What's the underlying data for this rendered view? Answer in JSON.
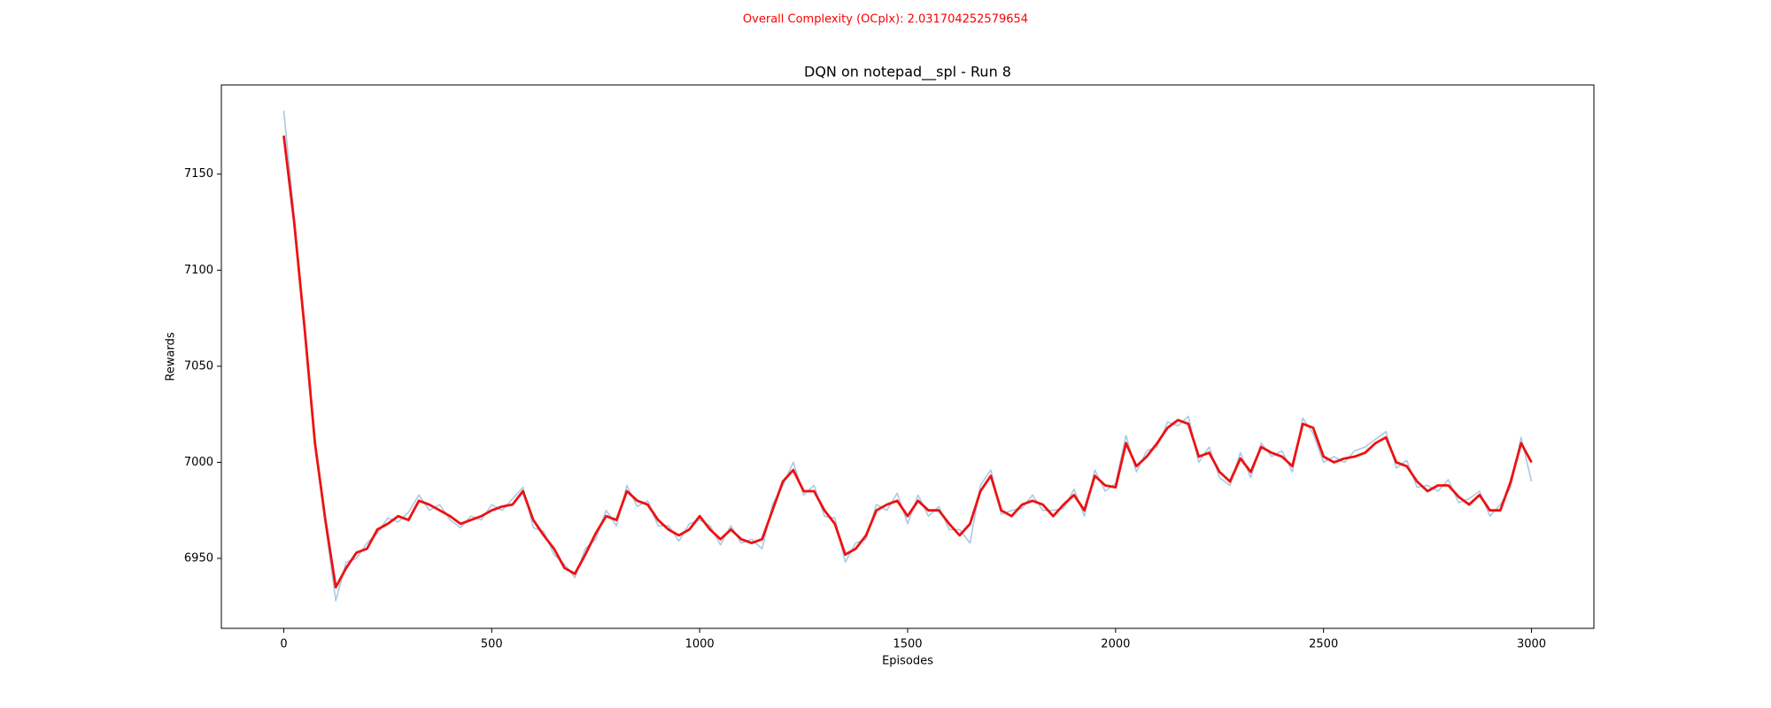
{
  "chart_data": {
    "type": "line",
    "suptitle": "Overall Complexity (OCplx): 2.031704252579654",
    "title": "DQN on notepad__spl - Run 8",
    "xlabel": "Episodes",
    "ylabel": "Rewards",
    "x": [
      0,
      25,
      50,
      75,
      100,
      125,
      150,
      175,
      200,
      225,
      250,
      275,
      300,
      325,
      350,
      375,
      400,
      425,
      450,
      475,
      500,
      525,
      550,
      575,
      600,
      625,
      650,
      675,
      700,
      725,
      750,
      775,
      800,
      825,
      850,
      875,
      900,
      925,
      950,
      975,
      1000,
      1025,
      1050,
      1075,
      1100,
      1125,
      1150,
      1175,
      1200,
      1225,
      1250,
      1275,
      1300,
      1325,
      1350,
      1375,
      1400,
      1425,
      1450,
      1475,
      1500,
      1525,
      1550,
      1575,
      1600,
      1625,
      1650,
      1675,
      1700,
      1725,
      1750,
      1775,
      1800,
      1825,
      1850,
      1875,
      1900,
      1925,
      1950,
      1975,
      2000,
      2025,
      2050,
      2075,
      2100,
      2125,
      2150,
      2175,
      2200,
      2225,
      2250,
      2275,
      2300,
      2325,
      2350,
      2375,
      2400,
      2425,
      2450,
      2475,
      2500,
      2525,
      2550,
      2575,
      2600,
      2625,
      2650,
      2675,
      2700,
      2725,
      2750,
      2775,
      2800,
      2825,
      2850,
      2875,
      2900,
      2925,
      2950,
      2975,
      3000
    ],
    "series": [
      {
        "color": "#a9c9e3",
        "values": [
          7183,
          7128,
          7068,
          7012,
          6968,
          6928,
          6948,
          6950,
          6958,
          6963,
          6971,
          6969,
          6974,
          6983,
          6975,
          6978,
          6970,
          6966,
          6972,
          6970,
          6978,
          6975,
          6981,
          6987,
          6966,
          6964,
          6952,
          6947,
          6940,
          6955,
          6960,
          6975,
          6967,
          6988,
          6977,
          6980,
          6967,
          6967,
          6959,
          6968,
          6970,
          6967,
          6957,
          6967,
          6958,
          6960,
          6955,
          6978,
          6988,
          7000,
          6983,
          6988,
          6972,
          6971,
          6948,
          6958,
          6960,
          6978,
          6975,
          6984,
          6968,
          6983,
          6972,
          6977,
          6965,
          6965,
          6958,
          6988,
          6996,
          6973,
          6975,
          6976,
          6983,
          6975,
          6975,
          6976,
          6986,
          6972,
          6996,
          6985,
          6989,
          7014,
          6995,
          7006,
          7008,
          7021,
          7019,
          7024,
          7000,
          7008,
          6992,
          6988,
          7005,
          6992,
          7010,
          7003,
          7006,
          6995,
          7023,
          7015,
          7000,
          7003,
          7000,
          7006,
          7008,
          7012,
          7016,
          6997,
          7001,
          6987,
          6988,
          6985,
          6991,
          6979,
          6981,
          6985,
          6972,
          6978,
          6987,
          7013,
          6990
        ]
      },
      {
        "color": "#ee1111",
        "values": [
          7170,
          7125,
          7070,
          7010,
          6970,
          6935,
          6945,
          6953,
          6955,
          6965,
          6968,
          6972,
          6970,
          6980,
          6978,
          6975,
          6972,
          6968,
          6970,
          6972,
          6975,
          6977,
          6978,
          6985,
          6970,
          6962,
          6955,
          6945,
          6942,
          6952,
          6963,
          6972,
          6970,
          6985,
          6980,
          6978,
          6970,
          6965,
          6962,
          6965,
          6972,
          6965,
          6960,
          6965,
          6960,
          6958,
          6960,
          6975,
          6990,
          6996,
          6985,
          6985,
          6975,
          6968,
          6952,
          6955,
          6962,
          6975,
          6978,
          6980,
          6972,
          6980,
          6975,
          6975,
          6968,
          6962,
          6968,
          6985,
          6993,
          6975,
          6972,
          6978,
          6980,
          6978,
          6972,
          6978,
          6983,
          6975,
          6993,
          6988,
          6987,
          7010,
          6998,
          7003,
          7010,
          7018,
          7022,
          7020,
          7003,
          7005,
          6995,
          6990,
          7002,
          6995,
          7008,
          7005,
          7003,
          6998,
          7020,
          7018,
          7003,
          7000,
          7002,
          7003,
          7005,
          7010,
          7013,
          7000,
          6998,
          6990,
          6985,
          6988,
          6988,
          6982,
          6978,
          6983,
          6975,
          6975,
          6990,
          7010,
          7000
        ]
      }
    ],
    "xlim": [
      -150,
      3150
    ],
    "ylim": [
      6913.6,
      7196.4
    ],
    "xticks": [
      0,
      500,
      1000,
      1500,
      2000,
      2500,
      3000
    ],
    "yticks": [
      6950,
      7000,
      7050,
      7100,
      7150
    ],
    "grid": false
  }
}
